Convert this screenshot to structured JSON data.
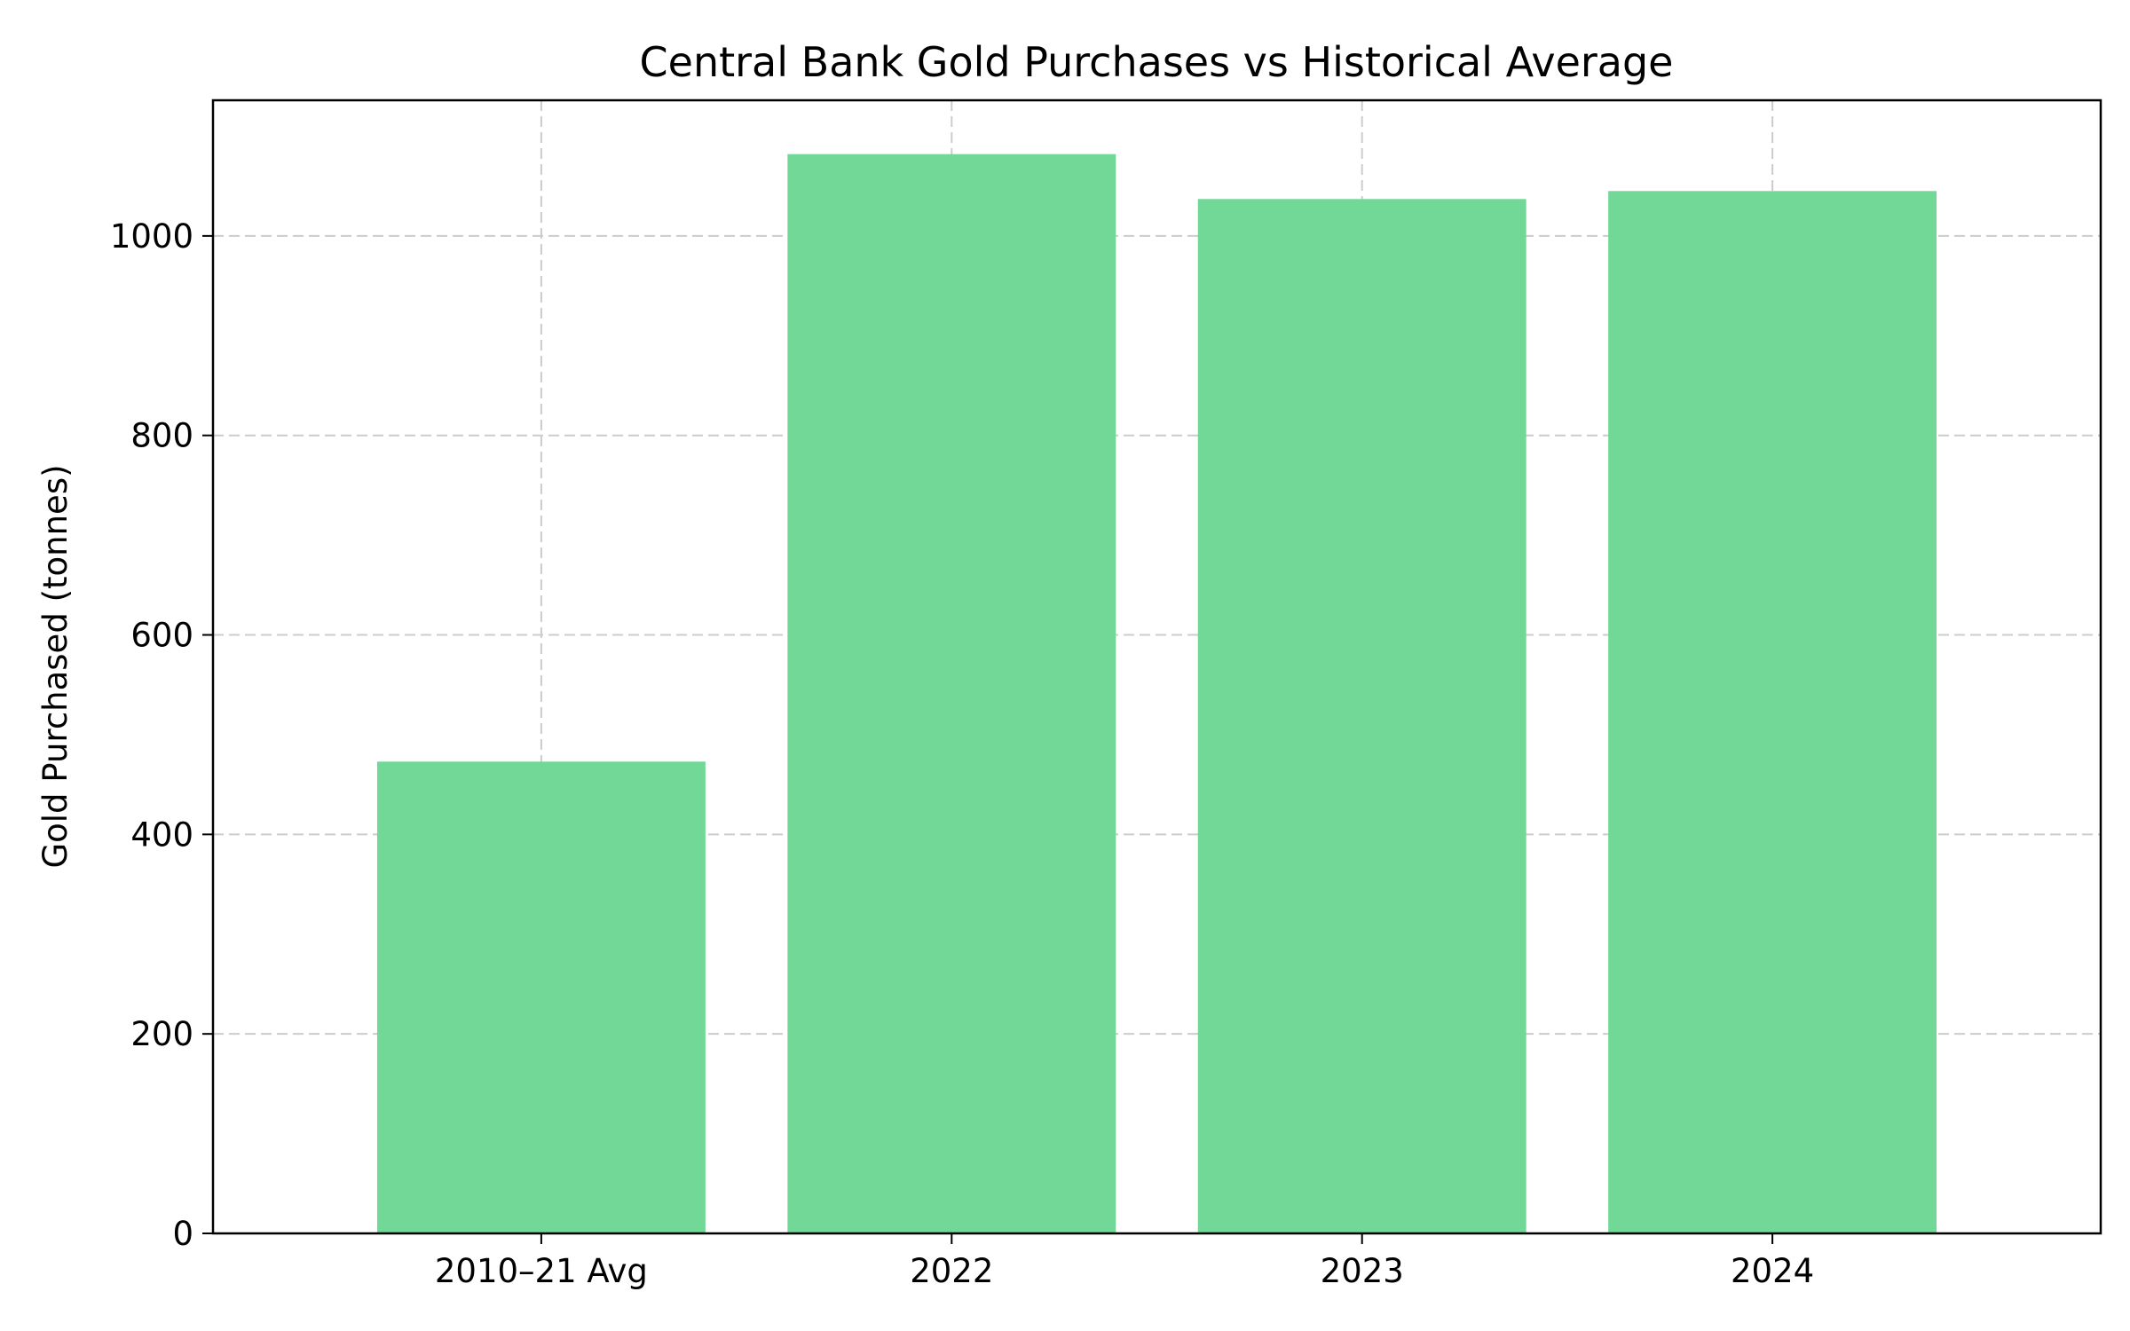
{
  "chart_data": {
    "type": "bar",
    "title": "Central Bank Gold Purchases vs Historical Average",
    "xlabel": "",
    "ylabel": "Gold Purchased (tonnes)",
    "categories": [
      "2010–21 Avg",
      "2022",
      "2023",
      "2024"
    ],
    "values": [
      473,
      1082,
      1037,
      1045
    ],
    "ylim": [
      0,
      1136
    ],
    "yticks": [
      0,
      200,
      400,
      600,
      800,
      1000
    ],
    "bar_color": "#72d897",
    "grid": true
  }
}
